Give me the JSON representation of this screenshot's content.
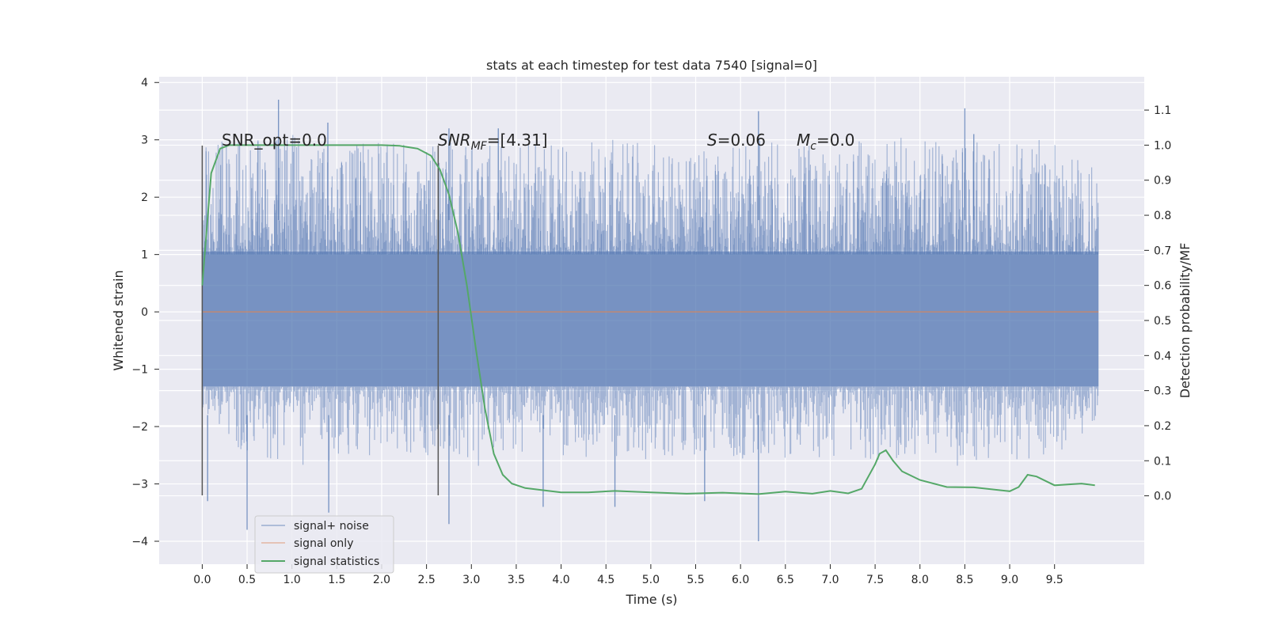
{
  "chart_data": {
    "type": "line",
    "title": "stats at each timestep for test data 7540 [signal=0]",
    "xlabel": "Time (s)",
    "ylabel": "Whitened strain",
    "y2label": "Detection probability/MF",
    "xlim": [
      -0.48,
      10.5
    ],
    "ylim": [
      -4.4,
      4.1
    ],
    "y2lim": [
      -0.195,
      1.195
    ],
    "x_ticks": [
      "0.0",
      "0.5",
      "1.0",
      "1.5",
      "2.0",
      "2.5",
      "3.0",
      "3.5",
      "4.0",
      "4.5",
      "5.0",
      "5.5",
      "6.0",
      "6.5",
      "7.0",
      "7.5",
      "8.0",
      "8.5",
      "9.0",
      "9.5"
    ],
    "y_ticks": [
      "4",
      "3",
      "2",
      "1",
      "0",
      "−1",
      "−2",
      "−3",
      "−4"
    ],
    "y2_ticks": [
      "1.1",
      "1.0",
      "0.9",
      "0.8",
      "0.7",
      "0.6",
      "0.5",
      "0.4",
      "0.3",
      "0.2",
      "0.1",
      "0.0"
    ],
    "grid": true,
    "legend_position": "lower-left",
    "annotations": {
      "snr_opt": "SNR_opt=0.0",
      "snr_mf_main": "SNR",
      "snr_mf_sub": "MF",
      "snr_mf_value": "=[4.31]",
      "s_main": "S",
      "s_value": "=0.06",
      "mc_main": "M",
      "mc_sub": "c",
      "mc_value": "=0.0"
    },
    "marker_lines_x": [
      0.0,
      2.63
    ],
    "noise": {
      "x_range": [
        0.0,
        9.99
      ],
      "envelope": [
        [
          0.0,
          -1.7,
          2.9
        ],
        [
          0.5,
          -2.6,
          3.1
        ],
        [
          1.0,
          -2.7,
          3.2
        ],
        [
          1.5,
          -2.6,
          3.0
        ],
        [
          2.0,
          -2.6,
          3.0
        ],
        [
          2.5,
          -2.5,
          2.9
        ],
        [
          3.0,
          -2.7,
          3.1
        ],
        [
          3.5,
          -2.6,
          3.0
        ],
        [
          4.0,
          -2.6,
          3.0
        ],
        [
          4.5,
          -2.5,
          3.0
        ],
        [
          5.0,
          -2.6,
          3.0
        ],
        [
          5.5,
          -2.5,
          3.0
        ],
        [
          6.0,
          -2.6,
          3.0
        ],
        [
          6.5,
          -2.6,
          3.0
        ],
        [
          7.0,
          -2.6,
          3.0
        ],
        [
          7.5,
          -2.6,
          3.1
        ],
        [
          8.0,
          -2.6,
          3.0
        ],
        [
          8.5,
          -2.7,
          3.1
        ],
        [
          9.0,
          -2.6,
          3.0
        ],
        [
          9.5,
          -2.5,
          3.0
        ],
        [
          9.99,
          -2.0,
          2.5
        ]
      ],
      "spikes": [
        [
          0.06,
          -3.3
        ],
        [
          0.5,
          -3.8
        ],
        [
          0.85,
          3.7
        ],
        [
          1.4,
          3.3
        ],
        [
          1.41,
          -3.5
        ],
        [
          2.75,
          3.2
        ],
        [
          2.75,
          -3.7
        ],
        [
          3.3,
          3.2
        ],
        [
          3.8,
          -3.4
        ],
        [
          4.6,
          -3.4
        ],
        [
          5.6,
          -3.3
        ],
        [
          6.2,
          3.5
        ],
        [
          6.2,
          -4.0
        ],
        [
          8.5,
          3.55
        ],
        [
          8.6,
          3.1
        ]
      ]
    },
    "series": [
      {
        "name": "signal+ noise",
        "color": "#4c72b0"
      },
      {
        "name": "signal only",
        "color": "#dd8452",
        "x": [
          0.0,
          9.99
        ],
        "y": [
          0.0,
          0.0
        ]
      },
      {
        "name": "signal statistics",
        "color": "#55a868",
        "axis": "right",
        "x": [
          0.0,
          0.1,
          0.2,
          0.3,
          0.5,
          1.0,
          1.5,
          2.0,
          2.2,
          2.4,
          2.55,
          2.65,
          2.75,
          2.85,
          2.95,
          3.05,
          3.15,
          3.25,
          3.35,
          3.45,
          3.6,
          3.8,
          4.0,
          4.3,
          4.6,
          5.0,
          5.4,
          5.8,
          6.2,
          6.5,
          6.8,
          7.0,
          7.2,
          7.35,
          7.5,
          7.55,
          7.62,
          7.7,
          7.8,
          8.0,
          8.3,
          8.6,
          9.0,
          9.1,
          9.2,
          9.3,
          9.5,
          9.8,
          9.95
        ],
        "y": [
          0.6,
          0.92,
          0.99,
          1.0,
          1.0,
          1.0,
          1.0,
          1.0,
          0.998,
          0.99,
          0.97,
          0.93,
          0.86,
          0.75,
          0.6,
          0.42,
          0.25,
          0.12,
          0.06,
          0.035,
          0.022,
          0.016,
          0.01,
          0.01,
          0.014,
          0.01,
          0.006,
          0.009,
          0.005,
          0.012,
          0.006,
          0.014,
          0.007,
          0.02,
          0.09,
          0.12,
          0.13,
          0.1,
          0.07,
          0.045,
          0.025,
          0.024,
          0.013,
          0.025,
          0.06,
          0.055,
          0.03,
          0.035,
          0.03
        ]
      }
    ]
  }
}
